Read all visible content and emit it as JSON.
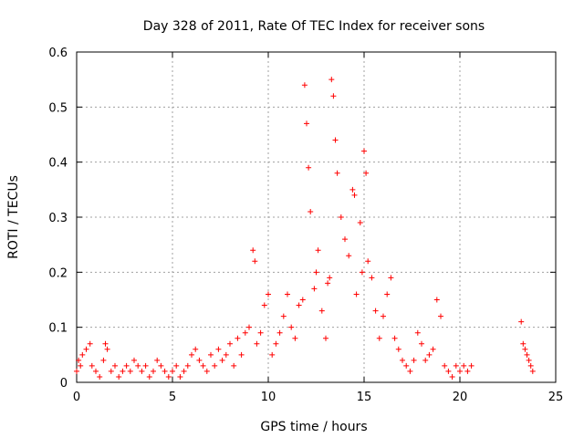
{
  "chart_data": {
    "type": "scatter",
    "title": "Day 328 of 2011, Rate Of TEC Index for receiver sons",
    "xlabel": "GPS time / hours",
    "ylabel": "ROTI / TECUs",
    "xlim": [
      0,
      25
    ],
    "ylim": [
      0,
      0.6
    ],
    "xticks": [
      "0",
      "5",
      "10",
      "15",
      "20",
      "25"
    ],
    "yticks": [
      "0",
      "0.1",
      "0.2",
      "0.3",
      "0.4",
      "0.5",
      "0.6"
    ],
    "grid": true,
    "marker": "+",
    "color": "#ff0000",
    "series": [
      {
        "x": [
          0.0,
          0.1,
          0.2,
          0.3,
          0.5,
          0.7,
          0.8,
          1.0,
          1.2,
          1.4,
          1.5,
          1.6,
          1.8,
          2.0,
          2.2,
          2.4,
          2.6,
          2.8,
          3.0,
          3.2,
          3.4,
          3.6,
          3.8,
          4.0,
          4.2,
          4.4,
          4.6,
          4.8,
          5.0,
          5.2,
          5.4,
          5.6,
          5.8,
          6.0,
          6.2,
          6.4,
          6.6,
          6.8,
          7.0,
          7.2,
          7.4,
          7.6,
          7.8,
          8.0,
          8.2,
          8.4,
          8.6,
          8.8,
          9.0,
          9.2,
          9.3,
          9.4,
          9.6,
          9.8,
          10.0,
          10.2,
          10.4,
          10.6,
          10.8,
          11.0,
          11.2,
          11.4,
          11.6,
          11.8,
          11.9,
          12.0,
          12.1,
          12.2,
          12.4,
          12.5,
          12.6,
          12.8,
          13.0,
          13.1,
          13.2,
          13.3,
          13.4,
          13.5,
          13.6,
          13.8,
          14.0,
          14.2,
          14.4,
          14.5,
          14.6,
          14.8,
          14.9,
          15.0,
          15.1,
          15.2,
          15.4,
          15.6,
          15.8,
          16.0,
          16.2,
          16.4,
          16.6,
          16.8,
          17.0,
          17.2,
          17.4,
          17.6,
          17.8,
          18.0,
          18.2,
          18.4,
          18.6,
          18.8,
          19.0,
          19.2,
          19.4,
          19.6,
          19.8,
          20.0,
          20.2,
          20.4,
          20.6,
          23.2,
          23.3,
          23.4,
          23.5,
          23.6,
          23.7,
          23.8
        ],
        "y": [
          0.02,
          0.04,
          0.03,
          0.05,
          0.06,
          0.07,
          0.03,
          0.02,
          0.01,
          0.04,
          0.07,
          0.06,
          0.02,
          0.03,
          0.01,
          0.02,
          0.03,
          0.02,
          0.04,
          0.03,
          0.02,
          0.03,
          0.01,
          0.02,
          0.04,
          0.03,
          0.02,
          0.01,
          0.02,
          0.03,
          0.01,
          0.02,
          0.03,
          0.05,
          0.06,
          0.04,
          0.03,
          0.02,
          0.05,
          0.03,
          0.06,
          0.04,
          0.05,
          0.07,
          0.03,
          0.08,
          0.05,
          0.09,
          0.1,
          0.24,
          0.22,
          0.07,
          0.09,
          0.14,
          0.16,
          0.05,
          0.07,
          0.09,
          0.12,
          0.16,
          0.1,
          0.08,
          0.14,
          0.15,
          0.54,
          0.47,
          0.39,
          0.31,
          0.17,
          0.2,
          0.24,
          0.13,
          0.08,
          0.18,
          0.19,
          0.55,
          0.52,
          0.44,
          0.38,
          0.3,
          0.26,
          0.23,
          0.35,
          0.34,
          0.16,
          0.29,
          0.2,
          0.42,
          0.38,
          0.22,
          0.19,
          0.13,
          0.08,
          0.12,
          0.16,
          0.19,
          0.08,
          0.06,
          0.04,
          0.03,
          0.02,
          0.04,
          0.09,
          0.07,
          0.04,
          0.05,
          0.06,
          0.15,
          0.12,
          0.03,
          0.02,
          0.01,
          0.03,
          0.02,
          0.03,
          0.02,
          0.03,
          0.11,
          0.07,
          0.06,
          0.05,
          0.04,
          0.03,
          0.02
        ]
      }
    ]
  }
}
